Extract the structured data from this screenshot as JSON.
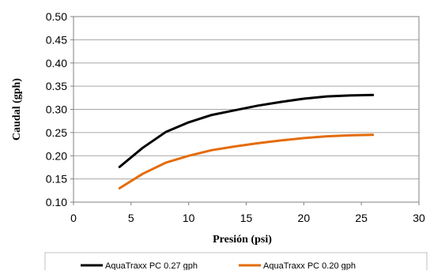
{
  "chart_data": {
    "type": "line",
    "title": "",
    "xlabel": "Presión (psi)",
    "ylabel": "Caudal (gph)",
    "xlim": [
      0,
      30
    ],
    "ylim": [
      0.1,
      0.5
    ],
    "x_ticks": [
      0,
      5,
      10,
      15,
      20,
      25,
      30
    ],
    "y_ticks": [
      0.1,
      0.15,
      0.2,
      0.25,
      0.3,
      0.35,
      0.4,
      0.45,
      0.5
    ],
    "y_tick_labels": [
      "0.10",
      "0.15",
      "0.20",
      "0.25",
      "0.30",
      "0.35",
      "0.40",
      "0.45",
      "0.50"
    ],
    "x_tick_labels": [
      "0",
      "5",
      "10",
      "15",
      "20",
      "25",
      "30"
    ],
    "grid": "horizontal",
    "legend_position": "bottom",
    "series": [
      {
        "name": "AquaTraxx PC 0.27 gph",
        "color": "#000000",
        "x": [
          4,
          6,
          8,
          10,
          12,
          14,
          16,
          18,
          20,
          22,
          24,
          26
        ],
        "y": [
          0.176,
          0.217,
          0.251,
          0.272,
          0.288,
          0.298,
          0.308,
          0.316,
          0.323,
          0.328,
          0.33,
          0.331
        ]
      },
      {
        "name": "AquaTraxx PC 0.20 gph",
        "color": "#e46c0a",
        "x": [
          4,
          6,
          8,
          10,
          12,
          14,
          16,
          18,
          20,
          22,
          24,
          26
        ],
        "y": [
          0.13,
          0.161,
          0.185,
          0.2,
          0.212,
          0.22,
          0.227,
          0.233,
          0.238,
          0.242,
          0.244,
          0.245
        ]
      }
    ]
  }
}
